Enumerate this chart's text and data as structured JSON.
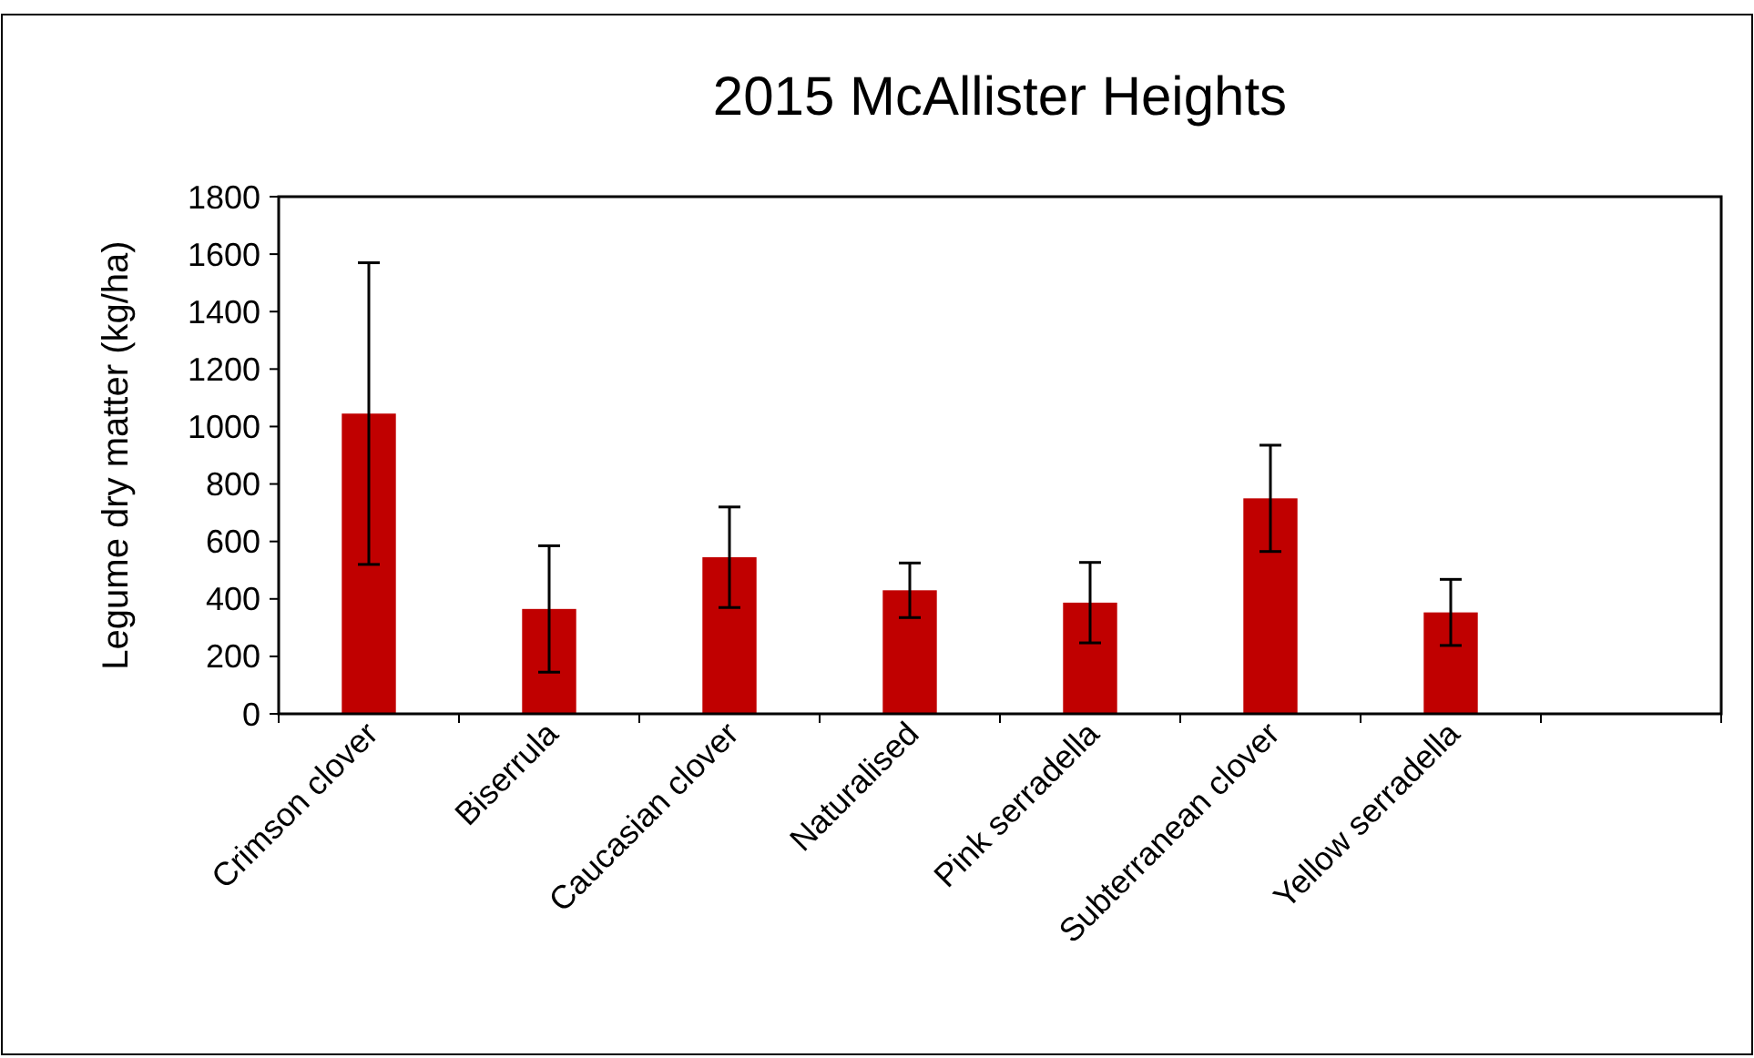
{
  "chart_data": {
    "type": "bar",
    "title": "2015 McAllister Heights",
    "ylabel": "Legume dry matter (kg/ha)",
    "categories": [
      "Crimson clover",
      "Biserrula",
      "Caucasian clover",
      "Naturalised",
      "Pink serradella",
      "Subterranean clover",
      "Yellow serradella",
      null
    ],
    "values": [
      1045,
      365,
      545,
      430,
      387,
      750,
      353,
      null
    ],
    "errors": [
      525,
      220,
      175,
      95,
      140,
      185,
      115,
      null
    ],
    "color": "#c00000",
    "ylim": [
      0,
      1800
    ],
    "yticks": [
      0,
      200,
      400,
      600,
      800,
      1000,
      1200,
      1400,
      1600,
      1800
    ],
    "grid": false
  }
}
